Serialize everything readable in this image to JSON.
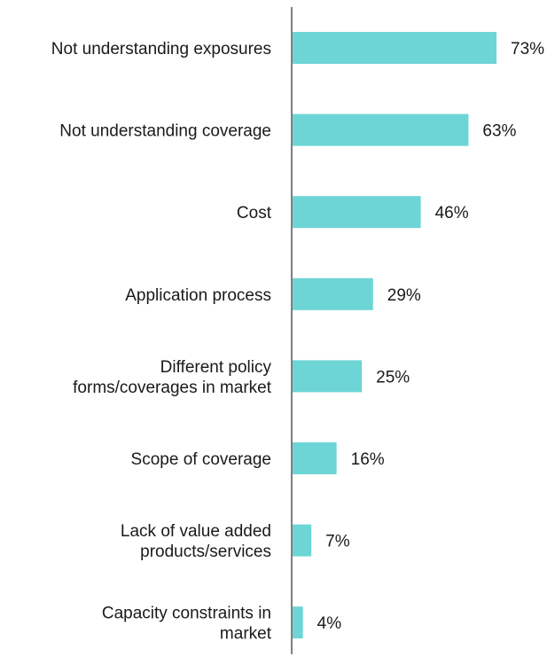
{
  "chart_data": {
    "type": "bar",
    "orientation": "horizontal",
    "categories": [
      [
        "Not understanding exposures"
      ],
      [
        "Not understanding coverage"
      ],
      [
        "Cost"
      ],
      [
        "Application process"
      ],
      [
        "Different policy",
        "forms/coverages in market"
      ],
      [
        "Scope of coverage"
      ],
      [
        "Lack of value added",
        "products/services"
      ],
      [
        "Capacity constraints in",
        "market"
      ]
    ],
    "values": [
      73,
      63,
      46,
      29,
      25,
      16,
      7,
      4
    ],
    "value_labels": [
      "73%",
      "63%",
      "46%",
      "29%",
      "25%",
      "16%",
      "7%",
      "4%"
    ],
    "unit": "%",
    "xlim": [
      0,
      100
    ],
    "grid": false,
    "legend": "none",
    "bar_color": "#6dd5d5",
    "axis_color": "#7f7f7f"
  }
}
